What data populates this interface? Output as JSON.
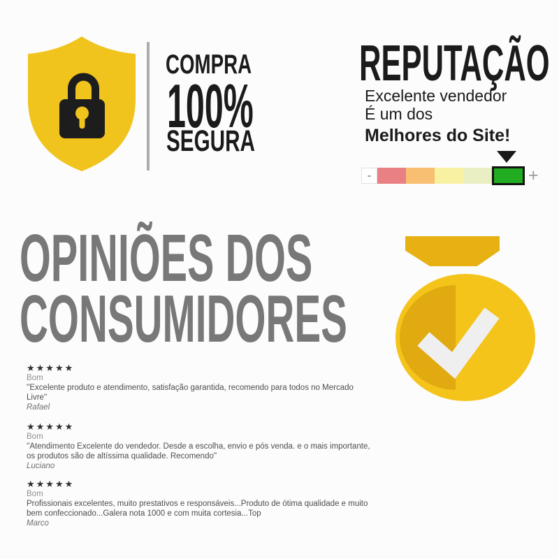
{
  "colors": {
    "ink": "#1B1B1B",
    "background": "#FCFCFC"
  },
  "secure_badge": {
    "line1": "COMPRA",
    "line2": "100%",
    "line3": "SEGURA",
    "shield_color": "#F0C41C",
    "lock_color": "#1D1D1D"
  },
  "reputation": {
    "title": "REPUTAÇÃO",
    "line1": "Excelente vendedor",
    "line2": "É um dos",
    "line3": "Melhores do Site!",
    "scale": {
      "minus_label": "-",
      "plus_label": "+",
      "pointer_color": "#1A1A1A",
      "segments": [
        {
          "name": "red",
          "color": "#E98083",
          "selected": false
        },
        {
          "name": "orange",
          "color": "#F8BE72",
          "selected": false
        },
        {
          "name": "yellow",
          "color": "#F9F1A2",
          "selected": false
        },
        {
          "name": "light-green",
          "color": "#E9EFC3",
          "selected": false
        },
        {
          "name": "green",
          "color": "#21AC21",
          "selected": true
        }
      ]
    }
  },
  "opinions_title": {
    "line1": "OPINIÕES DOS",
    "line2": "CONSUMIDORES",
    "color": "#787878"
  },
  "medal": {
    "gold": "#F4C41B",
    "gold_dark": "#E0AA10",
    "ribbon": "#E7B013",
    "check": "#EFEFEF"
  },
  "reviews": [
    {
      "stars": "★★★★★",
      "rating_label": "Bom",
      "text": "''Excelente produto e atendimento, satisfação garantida, recomendo para todos no Mercado Livre''",
      "author": "Rafael"
    },
    {
      "stars": "★★★★★",
      "rating_label": "Bom",
      "text": "''Atendimento Excelente do vendedor. Desde a escolha, envio e pós venda. e o mais importante, os produtos são de altíssima qualidade. Recomendo''",
      "author": "Luciano"
    },
    {
      "stars": "★★★★★",
      "rating_label": "Bom",
      "text": "Profissionais excelentes, muito prestativos e responsáveis...Produto de ótima qualidade e muito bem confeccionado...Galera nota 1000 e com muita cortesia...Top",
      "author": "Marco"
    }
  ]
}
